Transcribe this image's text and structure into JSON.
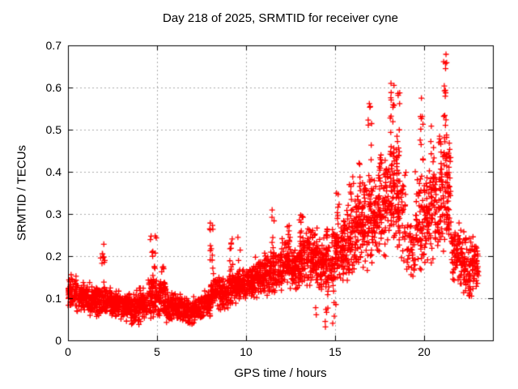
{
  "page": {
    "background": "#ffffff"
  },
  "chart_data": {
    "type": "scatter",
    "title": "Day 218 of 2025, SRMTID for receiver cyne",
    "xlabel": "GPS time / hours",
    "ylabel": "SRMTID / TECUs",
    "xlim": [
      0,
      23.86
    ],
    "ylim": [
      0,
      0.7
    ],
    "xticks": {
      "values": [
        0,
        5,
        10,
        15,
        20
      ],
      "labels": [
        "0",
        "5",
        "10",
        "15",
        "20"
      ]
    },
    "yticks": {
      "values": [
        0,
        0.1,
        0.2,
        0.3,
        0.4,
        0.5,
        0.6,
        0.7
      ],
      "labels": [
        "0",
        "0.1",
        "0.2",
        "0.3",
        "0.4",
        "0.5",
        "0.6",
        "0.7"
      ]
    },
    "grid": {
      "visible": true,
      "color": "#aaaaaa",
      "dash": [
        2,
        3
      ]
    },
    "legend": null,
    "border_color": "#000000",
    "marker": {
      "shape": "plus",
      "color": "#ff0000",
      "size": 7,
      "stroke": 1.3
    },
    "series_name": "SRMTID",
    "point_cloud": {
      "comment_bands": "each band = [t_start_hr, t_end_hr, n_points, y_low_TECU, y_high_TECU] read from the plotted envelope",
      "seed": 20250806,
      "epoch_step_hours": 0.008333,
      "bands": [
        [
          0.0,
          0.5,
          70,
          0.07,
          0.16
        ],
        [
          0.5,
          1.0,
          70,
          0.06,
          0.145
        ],
        [
          1.0,
          1.5,
          70,
          0.055,
          0.14
        ],
        [
          1.5,
          2.0,
          70,
          0.05,
          0.14
        ],
        [
          2.0,
          2.5,
          70,
          0.05,
          0.135
        ],
        [
          2.5,
          3.0,
          70,
          0.045,
          0.125
        ],
        [
          3.0,
          3.5,
          70,
          0.04,
          0.12
        ],
        [
          3.5,
          4.0,
          70,
          0.035,
          0.12
        ],
        [
          4.0,
          4.5,
          70,
          0.04,
          0.13
        ],
        [
          4.5,
          5.0,
          70,
          0.05,
          0.16
        ],
        [
          5.0,
          5.5,
          70,
          0.05,
          0.15
        ],
        [
          5.5,
          6.0,
          70,
          0.04,
          0.12
        ],
        [
          6.0,
          6.5,
          70,
          0.04,
          0.115
        ],
        [
          6.5,
          7.0,
          70,
          0.035,
          0.105
        ],
        [
          7.0,
          7.5,
          70,
          0.04,
          0.11
        ],
        [
          7.5,
          8.0,
          70,
          0.05,
          0.13
        ],
        [
          8.0,
          8.5,
          70,
          0.07,
          0.16
        ],
        [
          8.5,
          9.0,
          70,
          0.07,
          0.15
        ],
        [
          9.0,
          9.5,
          70,
          0.08,
          0.16
        ],
        [
          9.5,
          10.0,
          70,
          0.09,
          0.17
        ],
        [
          10.0,
          10.5,
          70,
          0.1,
          0.18
        ],
        [
          10.5,
          11.0,
          70,
          0.1,
          0.2
        ],
        [
          11.0,
          11.5,
          70,
          0.1,
          0.21
        ],
        [
          11.5,
          12.0,
          70,
          0.11,
          0.22
        ],
        [
          12.0,
          12.5,
          70,
          0.12,
          0.25
        ],
        [
          12.5,
          13.0,
          70,
          0.11,
          0.23
        ],
        [
          13.0,
          13.5,
          70,
          0.12,
          0.27
        ],
        [
          13.5,
          14.0,
          70,
          0.12,
          0.27
        ],
        [
          14.0,
          14.5,
          70,
          0.1,
          0.26
        ],
        [
          14.5,
          15.0,
          70,
          0.1,
          0.28
        ],
        [
          15.0,
          15.5,
          70,
          0.12,
          0.3
        ],
        [
          15.5,
          16.0,
          70,
          0.13,
          0.33
        ],
        [
          16.0,
          16.5,
          70,
          0.15,
          0.38
        ],
        [
          16.5,
          17.0,
          70,
          0.15,
          0.42
        ],
        [
          17.0,
          17.5,
          70,
          0.16,
          0.42
        ],
        [
          17.5,
          18.0,
          70,
          0.18,
          0.45
        ],
        [
          18.0,
          18.5,
          70,
          0.2,
          0.48
        ],
        [
          18.5,
          19.0,
          55,
          0.17,
          0.45
        ],
        [
          19.0,
          19.5,
          38,
          0.11,
          0.32
        ],
        [
          19.5,
          20.0,
          60,
          0.14,
          0.42
        ],
        [
          20.0,
          20.5,
          65,
          0.16,
          0.42
        ],
        [
          20.5,
          21.0,
          65,
          0.18,
          0.47
        ],
        [
          21.0,
          21.5,
          65,
          0.18,
          0.5
        ],
        [
          21.5,
          22.0,
          65,
          0.12,
          0.3
        ],
        [
          22.0,
          22.5,
          65,
          0.1,
          0.27
        ],
        [
          22.5,
          23.05,
          72,
          0.095,
          0.25
        ]
      ],
      "comment_spikes": "each spike = [t_center_hr, half_width_hr, n_points, y_low, y_high]",
      "spikes": [
        [
          1.95,
          0.12,
          10,
          0.13,
          0.235
        ],
        [
          4.78,
          0.18,
          16,
          0.13,
          0.252
        ],
        [
          5.35,
          0.1,
          6,
          0.12,
          0.2
        ],
        [
          8.05,
          0.1,
          12,
          0.15,
          0.285
        ],
        [
          9.2,
          0.12,
          10,
          0.16,
          0.25
        ],
        [
          9.6,
          0.08,
          6,
          0.15,
          0.25
        ],
        [
          10.4,
          0.1,
          6,
          0.14,
          0.21
        ],
        [
          11.5,
          0.08,
          8,
          0.2,
          0.31
        ],
        [
          12.4,
          0.08,
          6,
          0.2,
          0.28
        ],
        [
          13.1,
          0.1,
          10,
          0.22,
          0.33
        ],
        [
          13.55,
          0.08,
          6,
          0.2,
          0.3
        ],
        [
          15.15,
          0.08,
          8,
          0.25,
          0.37
        ],
        [
          15.9,
          0.1,
          8,
          0.28,
          0.4
        ],
        [
          16.35,
          0.08,
          6,
          0.3,
          0.43
        ],
        [
          16.95,
          0.1,
          12,
          0.35,
          0.565
        ],
        [
          17.5,
          0.08,
          8,
          0.32,
          0.45
        ],
        [
          18.2,
          0.12,
          16,
          0.4,
          0.615
        ],
        [
          18.55,
          0.1,
          10,
          0.42,
          0.6
        ],
        [
          19.85,
          0.1,
          10,
          0.38,
          0.575
        ],
        [
          20.35,
          0.08,
          8,
          0.35,
          0.52
        ],
        [
          20.9,
          0.08,
          8,
          0.35,
          0.5
        ],
        [
          21.15,
          0.12,
          18,
          0.42,
          0.685
        ],
        [
          21.45,
          0.08,
          6,
          0.35,
          0.47
        ]
      ],
      "low_outliers": [
        [
          13.9,
          0.05,
          2,
          0.05,
          0.08
        ],
        [
          14.5,
          0.2,
          5,
          0.03,
          0.08
        ],
        [
          14.95,
          0.1,
          4,
          0.04,
          0.09
        ]
      ]
    }
  }
}
